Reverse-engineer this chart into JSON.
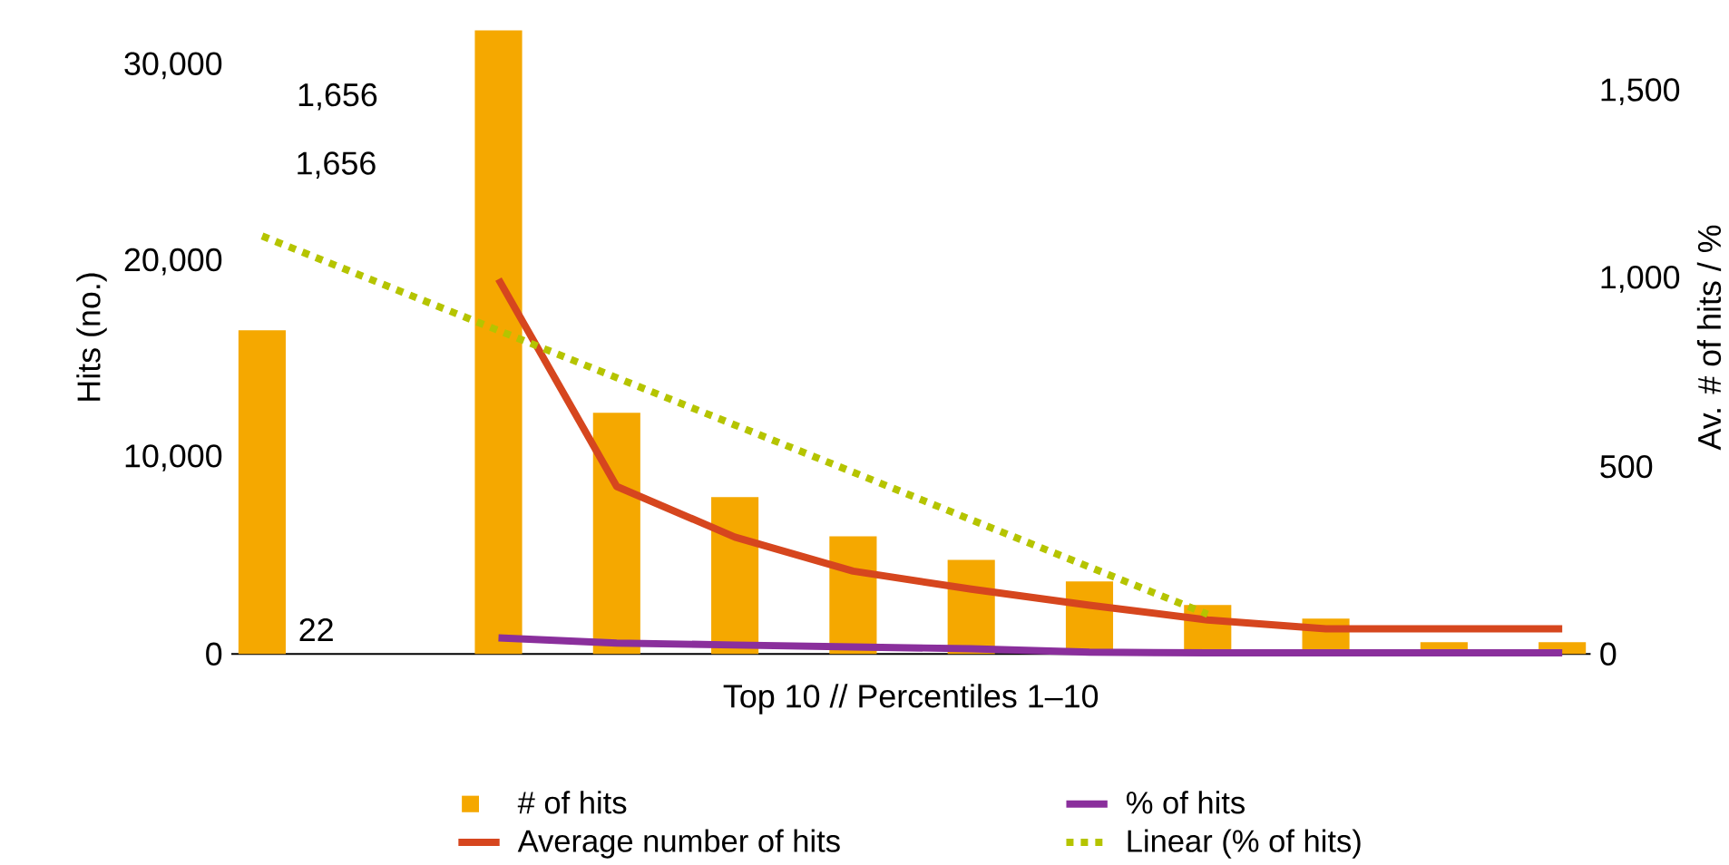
{
  "chart_data": {
    "type": "bar",
    "xlabel": "Top 10 // Percentiles 1–10",
    "ylabel": "Hits (no.)",
    "y2label": "Av. # of hits / %",
    "categories": [
      null,
      null,
      null,
      null,
      null,
      null,
      null,
      null,
      null,
      null,
      null,
      null
    ],
    "series": [
      {
        "name": "# of hits",
        "color": "#f5a800",
        "values": [
          16500,
          null,
          31800,
          12300,
          8000,
          6000,
          4800,
          3700,
          2500,
          1800,
          600,
          600
        ]
      },
      {
        "name": "% of hits",
        "type": "line",
        "axis": "y2",
        "color": "#8a2f9c",
        "line_style": "solid",
        "values": [
          null,
          null,
          43,
          29,
          24,
          19,
          14,
          5,
          3,
          3,
          3,
          3
        ]
      },
      {
        "name": "Average number of hits",
        "type": "line",
        "axis": "y2",
        "color": "#d6461e",
        "line_style": "solid",
        "values": [
          null,
          null,
          1000,
          447,
          312,
          221,
          173,
          130,
          91,
          67,
          67,
          67
        ]
      },
      {
        "name": "Linear (% of hits)",
        "type": "line",
        "axis": "y2",
        "color": "#b5c400",
        "line_style": "dotted",
        "values": [
          1115,
          989,
          863,
          737,
          611,
          485,
          358,
          232,
          106,
          null,
          null,
          null
        ]
      }
    ],
    "ylim": [
      0,
      32300
    ],
    "yticks": [
      0,
      {
        "value": 10000,
        "label": "10,000"
      },
      {
        "value": 20000,
        "label": "20,000"
      },
      {
        "value": 30000,
        "label": "30,000"
      }
    ],
    "y2lim": [
      0,
      1690
    ],
    "y2ticks": [
      0,
      500,
      {
        "value": 1000,
        "label": "1,000"
      },
      {
        "value": 1500,
        "label": "1,500"
      }
    ],
    "annotations": [
      "1,656",
      "1,656",
      "22"
    ],
    "tick_labels": "y",
    "legend": "bottom"
  }
}
